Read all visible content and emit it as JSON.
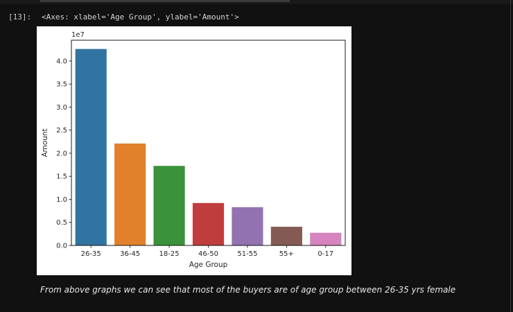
{
  "cell": {
    "prompt": "[13]:",
    "output_repr": "<Axes: xlabel='Age Group', ylabel='Amount'>"
  },
  "markdown": {
    "text": "From above graphs we can see that most of the buyers are of age group between 26-35 yrs female"
  },
  "chart_data": {
    "type": "bar",
    "categories": [
      "26-35",
      "36-45",
      "18-25",
      "46-50",
      "51-55",
      "55+",
      "0-17"
    ],
    "values": [
      42600000,
      22100000,
      17250000,
      9200000,
      8300000,
      4050000,
      2750000
    ],
    "colors": [
      "#3274a1",
      "#e1812c",
      "#3a923a",
      "#c03d3e",
      "#9372b2",
      "#845b53",
      "#d684bd"
    ],
    "title": "",
    "xlabel": "Age Group",
    "ylabel": "Amount",
    "offset_label": "1e7",
    "ylim": [
      0,
      44500000
    ],
    "yticks": [
      0,
      5000000,
      10000000,
      15000000,
      20000000,
      25000000,
      30000000,
      35000000,
      40000000
    ],
    "ytick_labels": [
      "0.0",
      "0.5",
      "1.0",
      "1.5",
      "2.0",
      "2.5",
      "3.0",
      "3.5",
      "4.0"
    ],
    "grid": false,
    "legend": "none"
  }
}
